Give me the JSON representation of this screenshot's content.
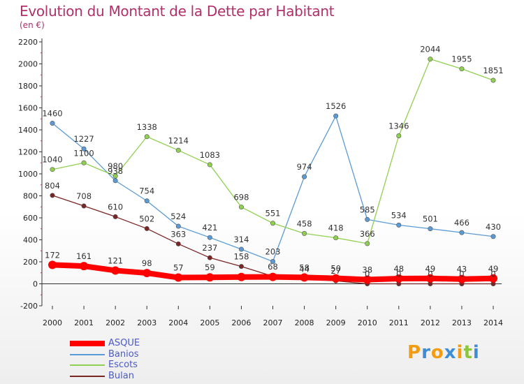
{
  "chart_data": {
    "type": "line",
    "title": "Evolution du Montant de la Dette par Habitant",
    "subtitle": "(en €)",
    "x": [
      "2000",
      "2001",
      "2002",
      "2003",
      "2004",
      "2005",
      "2006",
      "2007",
      "2008",
      "2009",
      "2010",
      "2011",
      "2012",
      "2013",
      "2014"
    ],
    "ylim": [
      -200,
      2200
    ],
    "yticks": [
      -200,
      0,
      200,
      400,
      600,
      800,
      1000,
      1200,
      1400,
      1600,
      1800,
      2000,
      2200
    ],
    "grid": false,
    "legend": "bottom-left",
    "series": [
      {
        "name": "ASQUE",
        "color": "#ff0000",
        "values": [
          172,
          161,
          121,
          98,
          57,
          59,
          62,
          63,
          58,
          50,
          38,
          48,
          49,
          43,
          49
        ],
        "labels": [
          "172",
          "161",
          "121",
          "98",
          "57",
          "59",
          "",
          "",
          "58",
          "50",
          "38",
          "48",
          "49",
          "43",
          "49"
        ]
      },
      {
        "name": "Banios",
        "color": "#5b9bd5",
        "values": [
          1460,
          1227,
          938,
          754,
          524,
          421,
          314,
          203,
          974,
          1526,
          585,
          534,
          501,
          466,
          430
        ],
        "labels": [
          "1460",
          "1227",
          "938",
          "754",
          "524",
          "421",
          "314",
          "203",
          "974",
          "1526",
          "585",
          "534",
          "501",
          "466",
          "430"
        ]
      },
      {
        "name": "Escots",
        "color": "#90d050",
        "values": [
          1040,
          1100,
          980,
          1338,
          1214,
          1083,
          698,
          551,
          458,
          418,
          366,
          1346,
          2044,
          1955,
          1851
        ],
        "labels": [
          "1040",
          "1100",
          "980",
          "1338",
          "1214",
          "1083",
          "698",
          "551",
          "458",
          "418",
          "366",
          "1346",
          "2044",
          "1955",
          "1851"
        ]
      },
      {
        "name": "Bulan",
        "color": "#7a2424",
        "values": [
          804,
          708,
          610,
          502,
          363,
          237,
          158,
          68,
          44,
          27,
          0,
          0,
          0,
          0,
          0
        ],
        "labels": [
          "804",
          "708",
          "610",
          "502",
          "363",
          "237",
          "158",
          "68",
          "44",
          "27",
          "0",
          "0",
          "0",
          "0",
          "0"
        ]
      }
    ]
  },
  "logo": {
    "letters": [
      "P",
      "r",
      "o",
      "x",
      "i",
      "t",
      "i"
    ],
    "colors": [
      "#f39c12",
      "#3d8ed6",
      "#f39c12",
      "#3d8ed6",
      "#f39c12",
      "#8cc63f",
      "#3d8ed6"
    ]
  }
}
